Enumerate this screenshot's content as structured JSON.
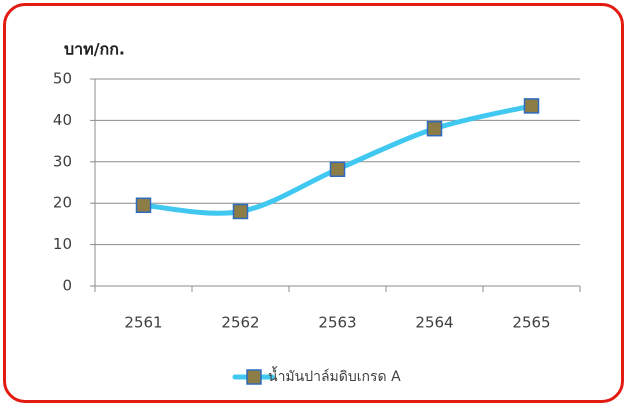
{
  "chart_data": {
    "type": "line",
    "y_label": "บาท/กก.",
    "categories": [
      "2561",
      "2562",
      "2563",
      "2564",
      "2565"
    ],
    "series": [
      {
        "name": "น้ำมันปาล์มดิบเกรด A",
        "color": "#41c8f0",
        "marker_color": "#8b7d45",
        "marker_edge": "#2e6bc0",
        "values": [
          19.5,
          18,
          28.2,
          38,
          43.5
        ]
      }
    ],
    "ylim": [
      0,
      50
    ],
    "yticks": [
      0,
      10,
      20,
      30,
      40,
      50
    ],
    "grid": true,
    "smooth": true,
    "legend": "bottom"
  }
}
